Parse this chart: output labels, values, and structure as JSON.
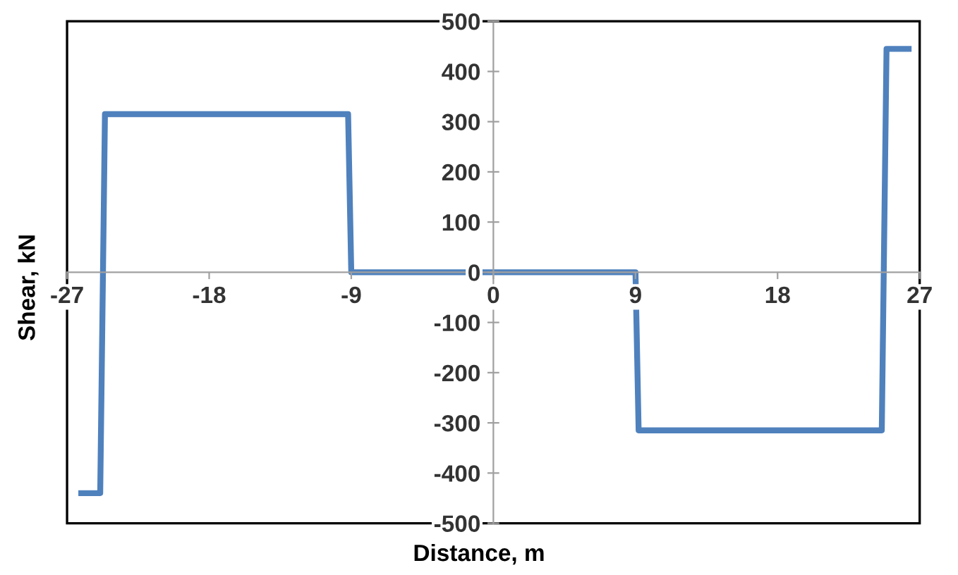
{
  "chart_data": {
    "type": "line",
    "xlabel": "Distance, m",
    "ylabel": "Shear, kN",
    "x": [
      -26.1,
      -24.9,
      -24.6,
      -9.2,
      -9,
      9,
      9.2,
      24.6,
      24.9,
      26.3
    ],
    "series": [
      {
        "color": "#4f81bd",
        "values": [
          -440,
          -440,
          315,
          315,
          0,
          0,
          -315,
          -315,
          445,
          445
        ]
      }
    ],
    "xlim": [
      -27,
      27
    ],
    "ylim": [
      -500,
      500
    ],
    "xticks": [
      -27,
      -18,
      -9,
      0,
      9,
      18,
      27
    ],
    "yticks": [
      -500,
      -400,
      -300,
      -200,
      -100,
      0,
      100,
      200,
      300,
      400,
      500
    ],
    "grid": false,
    "legend": false,
    "marker": "none",
    "line_style": "solid"
  }
}
